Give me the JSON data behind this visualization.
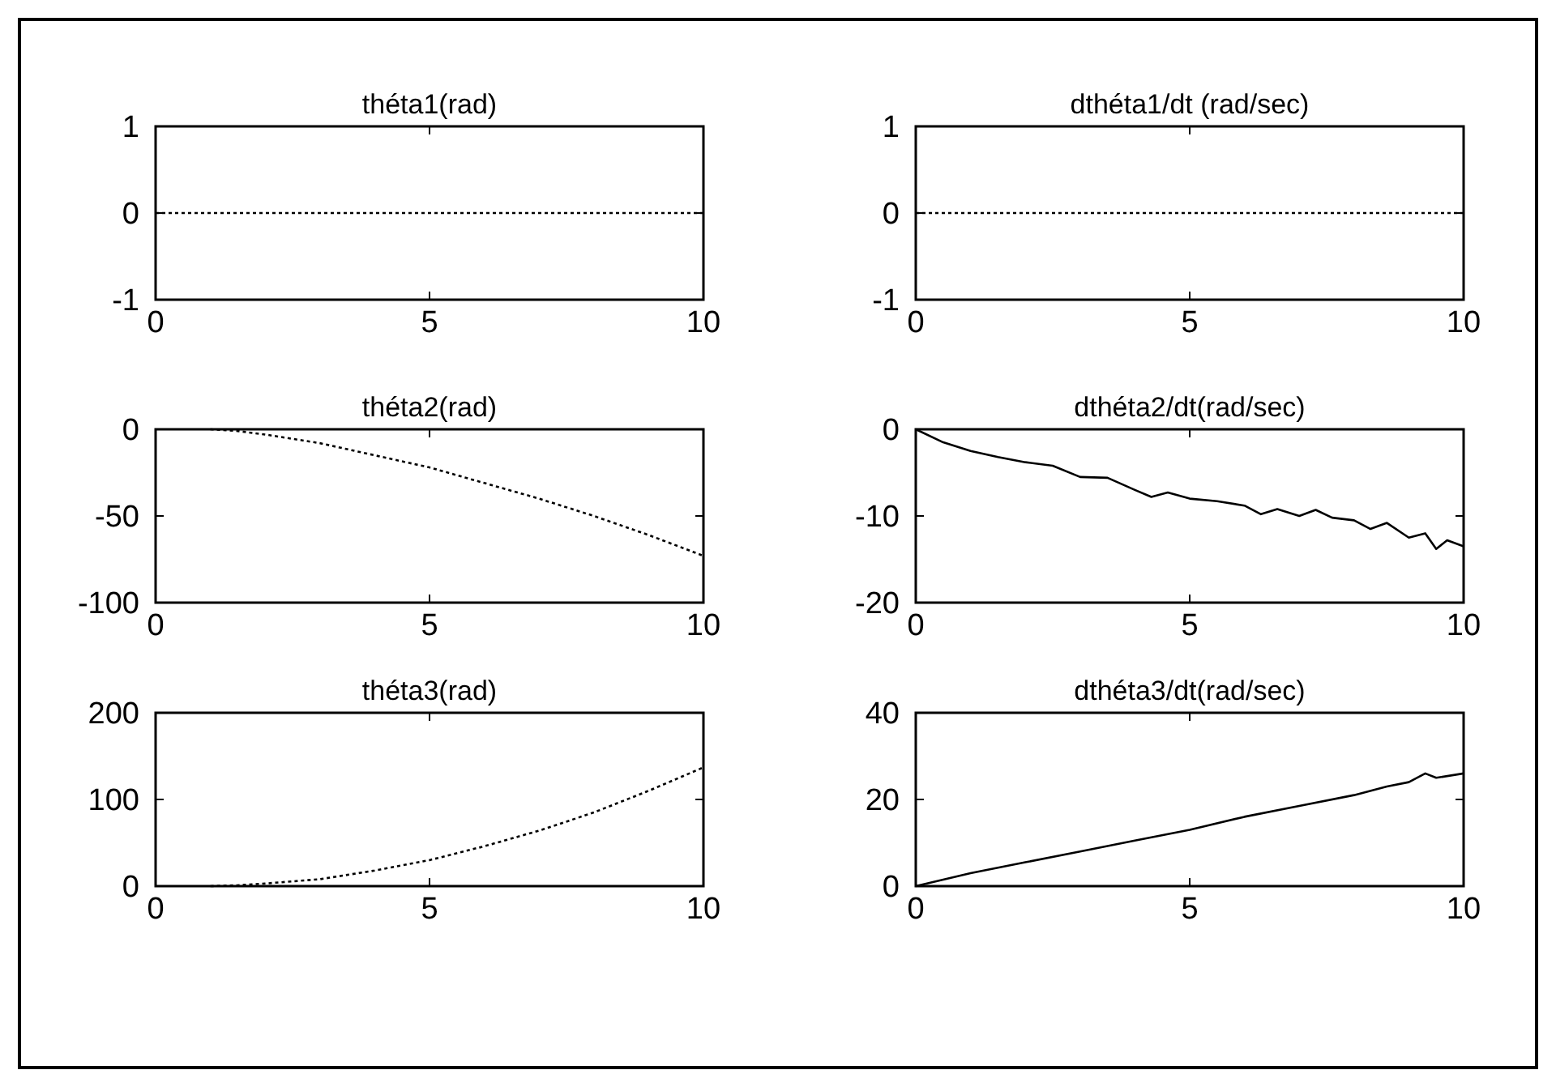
{
  "chart_data": [
    {
      "type": "line",
      "title": "théta1(rad)",
      "x": [
        0,
        10
      ],
      "series": [
        {
          "color": "#000000",
          "values": [
            0,
            0
          ],
          "line_style": "dotted"
        }
      ],
      "xlim": [
        0,
        10
      ],
      "xticks": [
        0,
        5,
        10
      ],
      "ylim": [
        -1,
        1
      ],
      "yticks": [
        -1,
        0,
        1
      ]
    },
    {
      "type": "line",
      "title": "dthéta1/dt (rad/sec)",
      "x": [
        0,
        10
      ],
      "series": [
        {
          "color": "#000000",
          "values": [
            0,
            0
          ],
          "line_style": "dotted"
        }
      ],
      "xlim": [
        0,
        10
      ],
      "xticks": [
        0,
        5,
        10
      ],
      "ylim": [
        -1,
        1
      ],
      "yticks": [
        -1,
        0,
        1
      ]
    },
    {
      "type": "line",
      "title": "théta2(rad)",
      "x": [
        1,
        1.5,
        2,
        3,
        4,
        5,
        6,
        7,
        8,
        9,
        10
      ],
      "series": [
        {
          "color": "#000000",
          "values": [
            0,
            -1,
            -3,
            -8,
            -15,
            -22,
            -31,
            -40,
            -50,
            -61,
            -73
          ],
          "line_style": "dotted"
        }
      ],
      "xlim": [
        0,
        10
      ],
      "xticks": [
        0,
        5,
        10
      ],
      "ylim": [
        -100,
        0
      ],
      "yticks": [
        -100,
        -50,
        0
      ]
    },
    {
      "type": "line",
      "title": "dthéta2/dt(rad/sec)",
      "x": [
        0,
        0.5,
        1,
        1.5,
        2,
        2.5,
        3,
        3.5,
        4,
        4.3,
        4.6,
        5,
        5.5,
        6,
        6.3,
        6.6,
        7,
        7.3,
        7.6,
        8,
        8.3,
        8.6,
        9,
        9.3,
        9.5,
        9.7,
        10
      ],
      "series": [
        {
          "color": "#000000",
          "values": [
            0,
            -1.5,
            -2.5,
            -3.2,
            -3.8,
            -4.2,
            -5.5,
            -5.6,
            -7,
            -7.8,
            -7.3,
            -8,
            -8.3,
            -8.8,
            -9.8,
            -9.2,
            -10,
            -9.3,
            -10.2,
            -10.5,
            -11.5,
            -10.8,
            -12.5,
            -12,
            -13.8,
            -12.8,
            -13.5
          ]
        }
      ],
      "xlim": [
        0,
        10
      ],
      "xticks": [
        0,
        5,
        10
      ],
      "ylim": [
        -20,
        0
      ],
      "yticks": [
        -20,
        -10,
        0
      ]
    },
    {
      "type": "line",
      "title": "théta3(rad)",
      "x": [
        1,
        1.5,
        2,
        3,
        4,
        5,
        6,
        7,
        8,
        9,
        10
      ],
      "series": [
        {
          "color": "#000000",
          "values": [
            0,
            1,
            3,
            8,
            18,
            30,
            46,
            64,
            85,
            110,
            137
          ],
          "line_style": "dotted"
        }
      ],
      "xlim": [
        0,
        10
      ],
      "xticks": [
        0,
        5,
        10
      ],
      "ylim": [
        0,
        200
      ],
      "yticks": [
        0,
        100,
        200
      ]
    },
    {
      "type": "line",
      "title": "dthéta3/dt(rad/sec)",
      "x": [
        0,
        1,
        2,
        3,
        4,
        5,
        6,
        7,
        8,
        8.6,
        9,
        9.3,
        9.5,
        10
      ],
      "series": [
        {
          "color": "#000000",
          "values": [
            0,
            3,
            5.5,
            8,
            10.5,
            13,
            16,
            18.5,
            21,
            23,
            24,
            26,
            25,
            26
          ]
        }
      ],
      "xlim": [
        0,
        10
      ],
      "xticks": [
        0,
        5,
        10
      ],
      "ylim": [
        0,
        40
      ],
      "yticks": [
        0,
        20,
        40
      ]
    }
  ]
}
